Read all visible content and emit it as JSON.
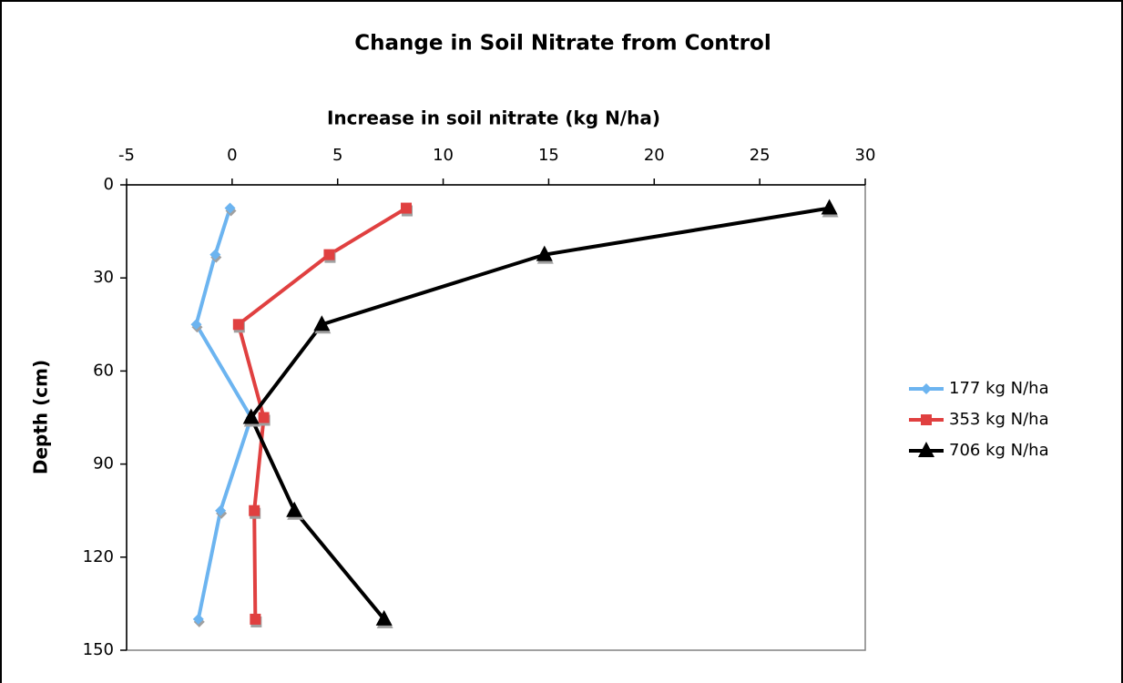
{
  "chart_data": {
    "type": "line",
    "title": "Change in Soil Nitrate from Control",
    "x_label": "Increase in soil nitrate (kg N/ha)",
    "y_label": "Depth (cm)",
    "xlim": [
      -5,
      30
    ],
    "xticks": [
      -5,
      0,
      5,
      10,
      15,
      20,
      25,
      30
    ],
    "ylim": [
      0,
      150
    ],
    "yticks": [
      0,
      30,
      60,
      90,
      120,
      150
    ],
    "y_reversed": true,
    "x_axis_position": "top",
    "legend": "right",
    "series": [
      {
        "name": "177 kg N/ha",
        "color": "#6cb4f0",
        "marker": "diamond",
        "x": [
          -0.1,
          -0.8,
          -1.7,
          0.9,
          -0.55,
          -1.6
        ],
        "values": [
          7.5,
          22.5,
          45,
          75,
          105,
          140
        ]
      },
      {
        "name": "353 kg N/ha",
        "color": "#e04040",
        "marker": "square",
        "x": [
          8.25,
          4.6,
          0.3,
          1.5,
          1.05,
          1.1
        ],
        "values": [
          7.5,
          22.5,
          45,
          75,
          105,
          140
        ]
      },
      {
        "name": "706 kg N/ha",
        "color": "#000000",
        "marker": "triangle",
        "x": [
          28.3,
          14.8,
          4.25,
          0.9,
          2.95,
          7.2
        ],
        "values": [
          7.5,
          22.5,
          45,
          75,
          105,
          140
        ]
      }
    ]
  }
}
